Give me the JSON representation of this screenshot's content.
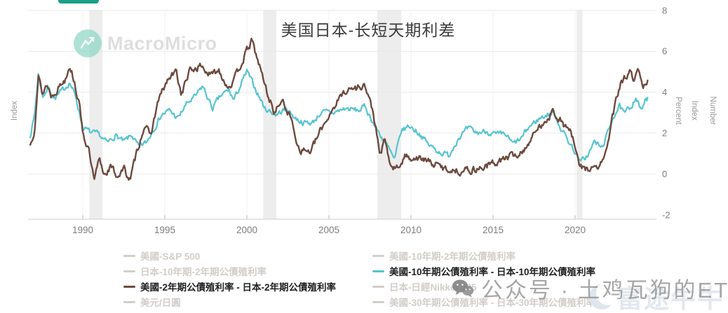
{
  "title": {
    "text": "美国日本-长短天期利差"
  },
  "logo": {
    "text": "MacroMicro",
    "icon": "macromicro-logo"
  },
  "colors": {
    "button_teal": "#18A188",
    "brown_series": "#6D4A3E",
    "teal_series": "#57C4D0",
    "muted_legend": "#D2CEC9",
    "active_legend_text": "#1F1F1F",
    "recession_band": "#EDEDED"
  },
  "watermarks": {
    "wechat": {
      "icon": "wechat-icon",
      "label": "公众号 · 土鸡瓦狗的ETF"
    },
    "futu": {
      "icon": "futu-moon-icon",
      "label": "富途牛牛"
    }
  },
  "chart_data": {
    "type": "line",
    "title": "美国日本-长短天期利差",
    "x_axis": {
      "ticks": [
        1990,
        1995,
        2000,
        2005,
        2010,
        2015,
        2020
      ],
      "range": [
        1986.7,
        2025.1
      ]
    },
    "y_axis_right": {
      "ticks": [
        8,
        6,
        4,
        2,
        0,
        -2
      ],
      "range": [
        -2.2,
        8
      ],
      "titles": [
        "Percent",
        "Index",
        "Number"
      ]
    },
    "y_axis_left": {
      "title": "Index"
    },
    "grid": true,
    "legend_position": "bottom",
    "recession_bands": [
      [
        1990.4,
        1991.2
      ],
      [
        2001.0,
        2001.8
      ],
      [
        2007.95,
        2009.4
      ],
      [
        2020.1,
        2020.45
      ]
    ],
    "series": [
      {
        "name": "美國-10年期公債殖利率 - 日本-10年期公債殖利率",
        "unit": "Percent",
        "color": "#57C4D0",
        "points": [
          [
            1986.8,
            1.9
          ],
          [
            1987.05,
            2.8
          ],
          [
            1987.3,
            4.9
          ],
          [
            1987.55,
            3.8
          ],
          [
            1987.9,
            4.2
          ],
          [
            1988.3,
            3.7
          ],
          [
            1988.8,
            4.1
          ],
          [
            1989.2,
            4.5
          ],
          [
            1989.6,
            3.7
          ],
          [
            1990.0,
            2.3
          ],
          [
            1990.5,
            2.0
          ],
          [
            1991.0,
            1.9
          ],
          [
            1991.5,
            1.5
          ],
          [
            1992.0,
            1.9
          ],
          [
            1992.5,
            1.55
          ],
          [
            1993.0,
            1.9
          ],
          [
            1993.4,
            1.3
          ],
          [
            1993.9,
            1.55
          ],
          [
            1994.3,
            2.2
          ],
          [
            1994.8,
            2.9
          ],
          [
            1995.3,
            3.1
          ],
          [
            1995.8,
            2.7
          ],
          [
            1996.3,
            3.4
          ],
          [
            1996.9,
            3.8
          ],
          [
            1997.3,
            4.3
          ],
          [
            1997.9,
            3.2
          ],
          [
            1998.4,
            3.8
          ],
          [
            1998.9,
            4.1
          ],
          [
            1999.2,
            3.6
          ],
          [
            1999.6,
            4.3
          ],
          [
            2000.0,
            5.0
          ],
          [
            2000.5,
            4.2
          ],
          [
            2001.1,
            3.2
          ],
          [
            2001.8,
            2.9
          ],
          [
            2002.4,
            3.2
          ],
          [
            2003.0,
            2.7
          ],
          [
            2003.5,
            2.5
          ],
          [
            2004.0,
            2.5
          ],
          [
            2004.5,
            3.0
          ],
          [
            2005.3,
            3.0
          ],
          [
            2006.0,
            3.2
          ],
          [
            2006.8,
            3.1
          ],
          [
            2007.2,
            3.3
          ],
          [
            2007.9,
            2.2
          ],
          [
            2008.3,
            1.7
          ],
          [
            2008.7,
            1.15
          ],
          [
            2009.0,
            0.65
          ],
          [
            2009.4,
            2.1
          ],
          [
            2009.9,
            2.35
          ],
          [
            2010.5,
            2.0
          ],
          [
            2011.1,
            1.4
          ],
          [
            2011.7,
            1.1
          ],
          [
            2012.3,
            0.9
          ],
          [
            2012.9,
            1.8
          ],
          [
            2013.5,
            2.2
          ],
          [
            2014.0,
            2.0
          ],
          [
            2014.6,
            2.1
          ],
          [
            2015.2,
            1.9
          ],
          [
            2015.8,
            1.9
          ],
          [
            2016.2,
            1.45
          ],
          [
            2016.7,
            1.7
          ],
          [
            2017.2,
            2.3
          ],
          [
            2017.8,
            2.7
          ],
          [
            2018.3,
            2.9
          ],
          [
            2018.7,
            3.0
          ],
          [
            2019.1,
            2.3
          ],
          [
            2019.6,
            1.6
          ],
          [
            2020.0,
            1.1
          ],
          [
            2020.3,
            0.55
          ],
          [
            2020.8,
            0.95
          ],
          [
            2021.2,
            1.6
          ],
          [
            2021.6,
            1.25
          ],
          [
            2022.0,
            2.0
          ],
          [
            2022.3,
            2.8
          ],
          [
            2022.7,
            3.3
          ],
          [
            2023.0,
            2.9
          ],
          [
            2023.4,
            3.3
          ],
          [
            2023.7,
            3.8
          ],
          [
            2024.0,
            3.1
          ],
          [
            2024.25,
            3.5
          ],
          [
            2024.45,
            3.7
          ]
        ]
      },
      {
        "name": "美國-2年期公債殖利率 - 日本-2年期公債殖利率",
        "unit": "Percent",
        "color": "#6D4A3E",
        "points": [
          [
            1986.8,
            1.4
          ],
          [
            1987.05,
            2.2
          ],
          [
            1987.3,
            4.8
          ],
          [
            1987.55,
            3.9
          ],
          [
            1987.8,
            4.4
          ],
          [
            1988.1,
            3.8
          ],
          [
            1988.5,
            4.25
          ],
          [
            1988.9,
            4.6
          ],
          [
            1989.2,
            5.4
          ],
          [
            1989.5,
            4.5
          ],
          [
            1989.8,
            3.3
          ],
          [
            1990.05,
            1.9
          ],
          [
            1990.35,
            1.2
          ],
          [
            1990.7,
            -0.4
          ],
          [
            1991.0,
            0.7
          ],
          [
            1991.3,
            0.0
          ],
          [
            1991.7,
            0.35
          ],
          [
            1992.1,
            -0.1
          ],
          [
            1992.5,
            0.25
          ],
          [
            1992.9,
            -0.3
          ],
          [
            1993.3,
            1.1
          ],
          [
            1993.8,
            2.5
          ],
          [
            1994.1,
            1.75
          ],
          [
            1994.6,
            3.6
          ],
          [
            1995.2,
            4.6
          ],
          [
            1995.7,
            5.0
          ],
          [
            1996.0,
            3.9
          ],
          [
            1996.5,
            5.0
          ],
          [
            1997.2,
            5.3
          ],
          [
            1997.8,
            4.8
          ],
          [
            1998.3,
            5.1
          ],
          [
            1998.8,
            4.3
          ],
          [
            1999.2,
            4.5
          ],
          [
            1999.7,
            5.5
          ],
          [
            2000.3,
            6.5
          ],
          [
            2000.8,
            5.2
          ],
          [
            2001.3,
            3.8
          ],
          [
            2001.7,
            3.0
          ],
          [
            2002.1,
            3.6
          ],
          [
            2002.6,
            2.9
          ],
          [
            2003.2,
            1.2
          ],
          [
            2003.9,
            1.1
          ],
          [
            2004.6,
            2.3
          ],
          [
            2005.3,
            3.3
          ],
          [
            2006.0,
            4.1
          ],
          [
            2006.7,
            4.2
          ],
          [
            2007.15,
            4.4
          ],
          [
            2007.7,
            3.0
          ],
          [
            2008.1,
            0.9
          ],
          [
            2008.4,
            1.6
          ],
          [
            2008.8,
            0.3
          ],
          [
            2009.2,
            0.25
          ],
          [
            2009.6,
            0.85
          ],
          [
            2010.3,
            0.8
          ],
          [
            2010.9,
            0.65
          ],
          [
            2011.5,
            0.45
          ],
          [
            2012.1,
            0.25
          ],
          [
            2012.9,
            0.15
          ],
          [
            2013.7,
            0.2
          ],
          [
            2014.5,
            0.35
          ],
          [
            2015.3,
            0.6
          ],
          [
            2016.0,
            0.85
          ],
          [
            2016.7,
            1.0
          ],
          [
            2017.4,
            1.8
          ],
          [
            2018.1,
            2.6
          ],
          [
            2018.7,
            3.05
          ],
          [
            2019.2,
            2.5
          ],
          [
            2019.7,
            2.1
          ],
          [
            2020.0,
            1.3
          ],
          [
            2020.25,
            0.35
          ],
          [
            2020.8,
            0.25
          ],
          [
            2021.4,
            0.3
          ],
          [
            2021.8,
            0.8
          ],
          [
            2022.1,
            2.0
          ],
          [
            2022.4,
            3.2
          ],
          [
            2022.75,
            4.4
          ],
          [
            2023.05,
            4.7
          ],
          [
            2023.35,
            5.0
          ],
          [
            2023.6,
            4.4
          ],
          [
            2023.85,
            5.1
          ],
          [
            2024.15,
            4.1
          ],
          [
            2024.45,
            4.7
          ]
        ]
      }
    ]
  },
  "legend": {
    "columns": [
      {
        "items": [
          {
            "label": "美國-S&P 500",
            "active": false,
            "color": "#D2CEC9"
          },
          {
            "label": "日本-10年期-2年期公債殖利率",
            "active": false,
            "color": "#D2CEC9"
          },
          {
            "label": "美國-2年期公債殖利率 - 日本-2年期公債殖利率",
            "active": true,
            "color": "#6D4A3E"
          },
          {
            "label": "美元/日圓",
            "active": false,
            "color": "#D2CEC9"
          }
        ]
      },
      {
        "items": [
          {
            "label": "美國-10年期-2年期公債殖利率",
            "active": false,
            "color": "#D2CEC9"
          },
          {
            "label": "美國-10年期公債殖利率 - 日本-10年期公債殖利率",
            "active": true,
            "color": "#57C4D0"
          },
          {
            "label": "日本-日經Nikkei 225",
            "active": false,
            "color": "#D2CEC9"
          },
          {
            "label": "美國-30年期公債殖利率 - 日本-30年期公債殖利率",
            "active": false,
            "color": "#D2CEC9"
          }
        ]
      }
    ]
  }
}
